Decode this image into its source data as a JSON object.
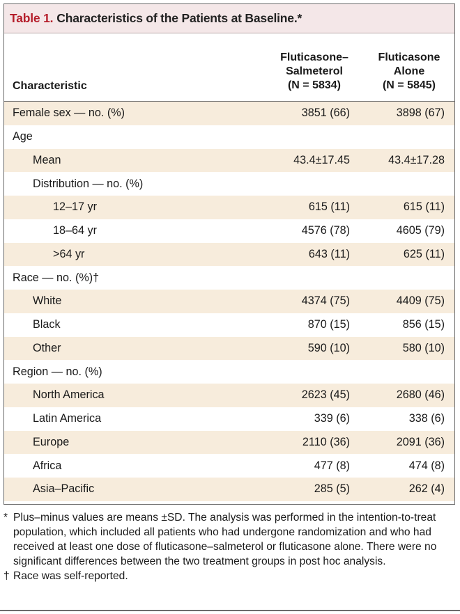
{
  "table": {
    "number": "Table 1.",
    "title": "Characteristics of the Patients at Baseline.*",
    "columns": {
      "characteristic": "Characteristic",
      "group1_line1": "Fluticasone–",
      "group1_line2": "Salmeterol",
      "group1_n": "(N = 5834)",
      "group2_line1": "Fluticasone",
      "group2_line2": "Alone",
      "group2_n": "(N = 5845)"
    },
    "rows": [
      {
        "label": "Female sex — no. (%)",
        "v1": "3851 (66)",
        "v2": "3898 (67)"
      },
      {
        "label": "Age",
        "v1": "",
        "v2": ""
      },
      {
        "label": "Mean",
        "v1": "43.4±17.45",
        "v2": "43.4±17.28"
      },
      {
        "label": "Distribution — no. (%)",
        "v1": "",
        "v2": ""
      },
      {
        "label": "12–17 yr",
        "v1": "615 (11)",
        "v2": "615 (11)"
      },
      {
        "label": "18–64 yr",
        "v1": "4576 (78)",
        "v2": "4605 (79)"
      },
      {
        "label": ">64 yr",
        "v1": "643 (11)",
        "v2": "625 (11)"
      },
      {
        "label": "Race — no. (%)†",
        "v1": "",
        "v2": ""
      },
      {
        "label": "White",
        "v1": "4374 (75)",
        "v2": "4409 (75)"
      },
      {
        "label": "Black",
        "v1": "870 (15)",
        "v2": "856 (15)"
      },
      {
        "label": "Other",
        "v1": "590 (10)",
        "v2": "580 (10)"
      },
      {
        "label": "Region — no. (%)",
        "v1": "",
        "v2": ""
      },
      {
        "label": "North America",
        "v1": "2623 (45)",
        "v2": "2680 (46)"
      },
      {
        "label": "Latin America",
        "v1": "339 (6)",
        "v2": "338 (6)"
      },
      {
        "label": "Europe",
        "v1": "2110 (36)",
        "v2": "2091 (36)"
      },
      {
        "label": "Africa",
        "v1": "477 (8)",
        "v2": "474 (8)"
      },
      {
        "label": "Asia–Pacific",
        "v1": "285 (5)",
        "v2": "262 (4)"
      }
    ]
  },
  "footnotes": {
    "star_symbol": "*",
    "star_text": "Plus–minus values are means ±SD. The analysis was performed in the intention-to-treat population, which included all patients who had undergone randomization and who had received at least one dose of fluticasone–salmeterol or fluticasone alone. There were no significant differences between the two treatment groups in post hoc analysis.",
    "dagger_symbol": "†",
    "dagger_text": "Race was self-reported."
  },
  "colors": {
    "title_accent": "#b51e2b",
    "title_background": "#f4e7e8",
    "row_shade": "#f7ecdc",
    "rule": "#6b6b6b"
  }
}
